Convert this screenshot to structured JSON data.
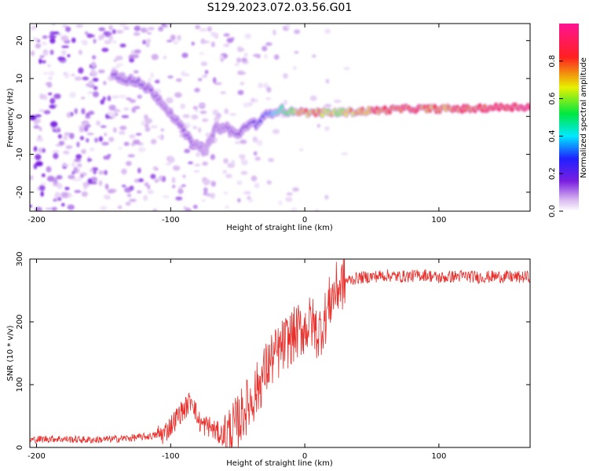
{
  "title": "S129.2023.072.03.56.G01",
  "colors": {
    "snr_line": "#e8302c",
    "axis": "#000000",
    "background": "#ffffff"
  },
  "chart_data": [
    {
      "type": "heatmap",
      "xlabel": "Height of straight line (km)",
      "ylabel": "Frequency (Hz)",
      "xlim": [
        -205,
        168
      ],
      "ylim": [
        -25,
        24.5
      ],
      "xticks": [
        -200,
        -100,
        0,
        100
      ],
      "xtick_labels": [
        "-200",
        "-100",
        "0",
        "100"
      ],
      "yticks": [
        -20,
        -10,
        0,
        10,
        20
      ],
      "ytick_labels": [
        "-20",
        "-10",
        "0",
        "10",
        "20"
      ],
      "colorbar": {
        "label": "Normalized spectral amplitude",
        "range": [
          0,
          1
        ],
        "ticks": [
          0.0,
          0.2,
          0.4,
          0.6,
          0.8
        ],
        "tick_labels": [
          "0.0",
          "0.2",
          "0.4",
          "0.6",
          "0.8"
        ],
        "colormap": [
          "#ffffff",
          "#d8b8f0",
          "#7a1fe0",
          "#2020ff",
          "#00e8ff",
          "#00e840",
          "#e8f000",
          "#ff2020",
          "#ff1493"
        ]
      },
      "ridge": {
        "x": [
          -143,
          -135,
          -125,
          -115,
          -105,
          -98,
          -92,
          -86,
          -80,
          -74,
          -66,
          -58,
          -50,
          -42,
          -36,
          -30,
          -24,
          -18,
          -12,
          -6,
          0,
          10,
          25,
          50,
          75,
          100,
          125,
          150,
          168
        ],
        "freq": [
          11,
          10,
          9,
          7,
          3,
          0,
          -3,
          -6,
          -8,
          -9,
          -3,
          -3,
          -5,
          -2,
          -2,
          0,
          1,
          2,
          1,
          1.5,
          1,
          1,
          1,
          1.5,
          2,
          2,
          2,
          2.5,
          2.5
        ],
        "amplitude": [
          0.3,
          0.25,
          0.3,
          0.25,
          0.2,
          0.2,
          0.25,
          0.25,
          0.2,
          0.15,
          0.2,
          0.2,
          0.25,
          0.3,
          0.35,
          0.4,
          0.5,
          0.6,
          0.7,
          0.8,
          0.85,
          0.85,
          0.8,
          0.9,
          0.95,
          0.9,
          0.95,
          1.0,
          1.0
        ]
      }
    },
    {
      "type": "line",
      "xlabel": "Height of straight line (km)",
      "ylabel": "SNR (10 * v/v)",
      "xlim": [
        -205,
        168
      ],
      "ylim": [
        0,
        300
      ],
      "xticks": [
        -200,
        -100,
        0,
        100
      ],
      "xtick_labels": [
        "-200",
        "-100",
        "0",
        "100"
      ],
      "yticks": [
        0,
        100,
        200,
        300
      ],
      "ytick_labels": [
        "0",
        "100",
        "200",
        "300"
      ],
      "series": [
        {
          "x": [
            -205,
            -190,
            -175,
            -160,
            -145,
            -130,
            -115,
            -105,
            -98,
            -93,
            -88,
            -84,
            -80,
            -76,
            -72,
            -68,
            -64,
            -60,
            -55,
            -50,
            -45,
            -40,
            -35,
            -30,
            -25,
            -20,
            -15,
            -10,
            -5,
            0,
            5,
            10,
            15,
            20,
            25,
            30,
            40,
            50,
            60,
            70,
            80,
            90,
            100,
            110,
            120,
            130,
            140,
            150,
            160,
            168
          ],
          "y": [
            12,
            14,
            13,
            12,
            13,
            15,
            18,
            22,
            40,
            55,
            65,
            80,
            45,
            35,
            35,
            28,
            22,
            20,
            25,
            40,
            60,
            75,
            95,
            120,
            140,
            150,
            165,
            175,
            185,
            190,
            200,
            180,
            205,
            240,
            255,
            265,
            270,
            272,
            274,
            272,
            273,
            275,
            270,
            272,
            273,
            271,
            272,
            272,
            271,
            272
          ]
        }
      ]
    }
  ]
}
